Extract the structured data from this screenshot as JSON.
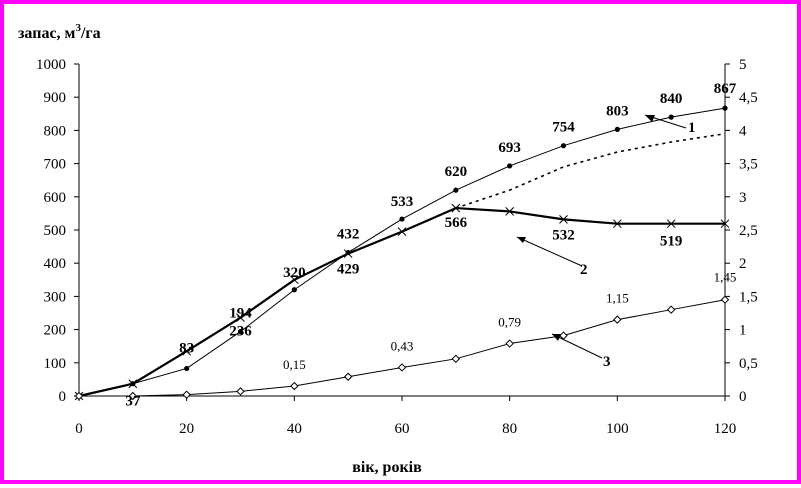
{
  "chart_data": {
    "type": "line",
    "ylabel": "запас, м³/га",
    "ylabel_base": "запас, м",
    "ylabel_sup": "3",
    "ylabel_tail": "/га",
    "xlabel": "вік, років",
    "xlim": [
      0,
      120
    ],
    "ylim": [
      0,
      1000
    ],
    "y2lim": [
      0,
      5
    ],
    "x_ticks": [
      "0",
      "20",
      "40",
      "60",
      "80",
      "100",
      "120"
    ],
    "y_ticks": [
      "0",
      "100",
      "200",
      "300",
      "400",
      "500",
      "600",
      "700",
      "800",
      "900",
      "1000"
    ],
    "y2_ticks": [
      "0",
      "0,5",
      "1",
      "1,5",
      "2",
      "2,5",
      "3",
      "3,5",
      "4",
      "4,5",
      "5"
    ],
    "grid": false,
    "series": [
      {
        "name": "1",
        "axis": "left",
        "marker": "dot",
        "x": [
          0,
          10,
          20,
          30,
          40,
          50,
          60,
          70,
          80,
          90,
          100,
          110,
          120
        ],
        "y": [
          0,
          37,
          83,
          194,
          320,
          432,
          533,
          620,
          693,
          754,
          803,
          840,
          867
        ]
      },
      {
        "name": "2",
        "axis": "left",
        "marker": "cross",
        "x": [
          0,
          10,
          20,
          30,
          40,
          50,
          60,
          70,
          80,
          90,
          100,
          110,
          120
        ],
        "y": [
          0,
          37,
          135,
          236,
          350,
          429,
          495,
          566,
          556,
          532,
          519,
          519,
          519
        ]
      },
      {
        "name": "dotted-continuation",
        "axis": "left",
        "style": "dotted",
        "x": [
          70,
          80,
          90,
          100,
          110,
          120
        ],
        "y": [
          566,
          620,
          690,
          735,
          765,
          790
        ]
      },
      {
        "name": "3",
        "axis": "right",
        "marker": "diamond",
        "x": [
          0,
          10,
          20,
          30,
          40,
          50,
          60,
          70,
          80,
          90,
          100,
          110,
          120
        ],
        "y": [
          0,
          0,
          0.02,
          0.07,
          0.15,
          0.29,
          0.43,
          0.56,
          0.79,
          0.91,
          1.15,
          1.3,
          1.45
        ]
      }
    ],
    "point_labels": [
      {
        "x": 10,
        "y": 37,
        "text": "37"
      },
      {
        "x": 20,
        "y": 83,
        "text": "83"
      },
      {
        "x": 30,
        "y": 194,
        "text": "194"
      },
      {
        "x": 30,
        "y": 236,
        "text": "236"
      },
      {
        "x": 40,
        "y": 320,
        "text": "320"
      },
      {
        "x": 50,
        "y": 432,
        "text": "432"
      },
      {
        "x": 50,
        "y": 429,
        "text": "429"
      },
      {
        "x": 60,
        "y": 533,
        "text": "533"
      },
      {
        "x": 70,
        "y": 620,
        "text": "620"
      },
      {
        "x": 70,
        "y": 566,
        "text": "566"
      },
      {
        "x": 80,
        "y": 693,
        "text": "693"
      },
      {
        "x": 90,
        "y": 754,
        "text": "754"
      },
      {
        "x": 90,
        "y": 532,
        "text": "532"
      },
      {
        "x": 100,
        "y": 803,
        "text": "803"
      },
      {
        "x": 110,
        "y": 840,
        "text": "840"
      },
      {
        "x": 110,
        "y": 519,
        "text": "519"
      },
      {
        "x": 120,
        "y": 867,
        "text": "867"
      },
      {
        "x": 40,
        "y2": 0.15,
        "text": "0,15"
      },
      {
        "x": 60,
        "y2": 0.43,
        "text": "0,43"
      },
      {
        "x": 80,
        "y2": 0.79,
        "text": "0,79"
      },
      {
        "x": 100,
        "y2": 1.15,
        "text": "1,15"
      },
      {
        "x": 120,
        "y2": 1.45,
        "text": "1,45"
      }
    ],
    "callouts": [
      "1",
      "2",
      "3"
    ],
    "hatched_region": {
      "between": [
        "dotted-continuation",
        "1"
      ],
      "x_range": [
        70,
        122
      ]
    },
    "colors": {
      "frame": "#ff00ff",
      "lines": "#000000",
      "background": "#ffffff"
    }
  }
}
